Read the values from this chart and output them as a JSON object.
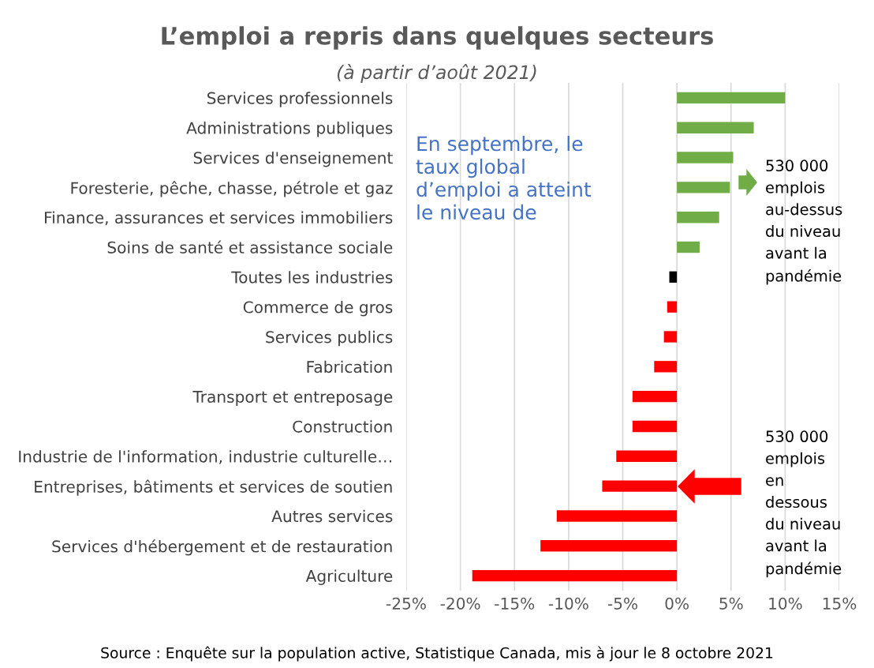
{
  "chart_data": {
    "type": "bar",
    "orientation": "horizontal",
    "title": "L’emploi a repris dans quelques secteurs",
    "subtitle": "(à partir d’août 2021)",
    "categories": [
      "Services professionnels",
      "Administrations publiques",
      "Services d'enseignement",
      "Foresterie, pêche, chasse, pétrole et gaz",
      "Finance, assurances et services immobiliers",
      "Soins de santé et assistance sociale",
      "Toutes les industries",
      "Commerce de gros",
      "Services publics",
      "Fabrication",
      "Transport et entreposage",
      "Construction",
      "Industrie de l'information, industrie culturelle…",
      "Entreprises, bâtiments et services de soutien",
      "Autres services",
      "Services d'hébergement et de restauration",
      "Agriculture"
    ],
    "values": [
      10.0,
      7.1,
      5.2,
      4.9,
      3.9,
      2.1,
      -0.7,
      -0.9,
      -1.2,
      -2.1,
      -4.1,
      -4.1,
      -5.6,
      -6.9,
      -11.1,
      -12.6,
      -18.9
    ],
    "colors": [
      "#70ad47",
      "#70ad47",
      "#70ad47",
      "#70ad47",
      "#70ad47",
      "#70ad47",
      "#000000",
      "#ff0000",
      "#ff0000",
      "#ff0000",
      "#ff0000",
      "#ff0000",
      "#ff0000",
      "#ff0000",
      "#ff0000",
      "#ff0000",
      "#ff0000"
    ],
    "xlim": [
      -25,
      15
    ],
    "xticks": [
      {
        "value": -25,
        "label": "-25%"
      },
      {
        "value": -20,
        "label": "-20%"
      },
      {
        "value": -15,
        "label": "-15%"
      },
      {
        "value": -10,
        "label": "-10%"
      },
      {
        "value": -5,
        "label": "-5%"
      },
      {
        "value": 0,
        "label": "0%"
      },
      {
        "value": 5,
        "label": "5%"
      },
      {
        "value": 10,
        "label": "10%"
      },
      {
        "value": 15,
        "label": "15%"
      }
    ],
    "grid": "x",
    "annotations": [
      "En septembre, le\ntaux global\nd’emploi a atteint\nle niveau de",
      "530 000\nemplois\nau-dessus\ndu niveau\navant la\npandémie",
      "530 000\nemplois\nen\ndessous\ndu niveau\navant la\npandémie",
      "Source : Enquête sur la population active, Statistique Canada, mis à jour le 8 octobre 2021"
    ]
  }
}
